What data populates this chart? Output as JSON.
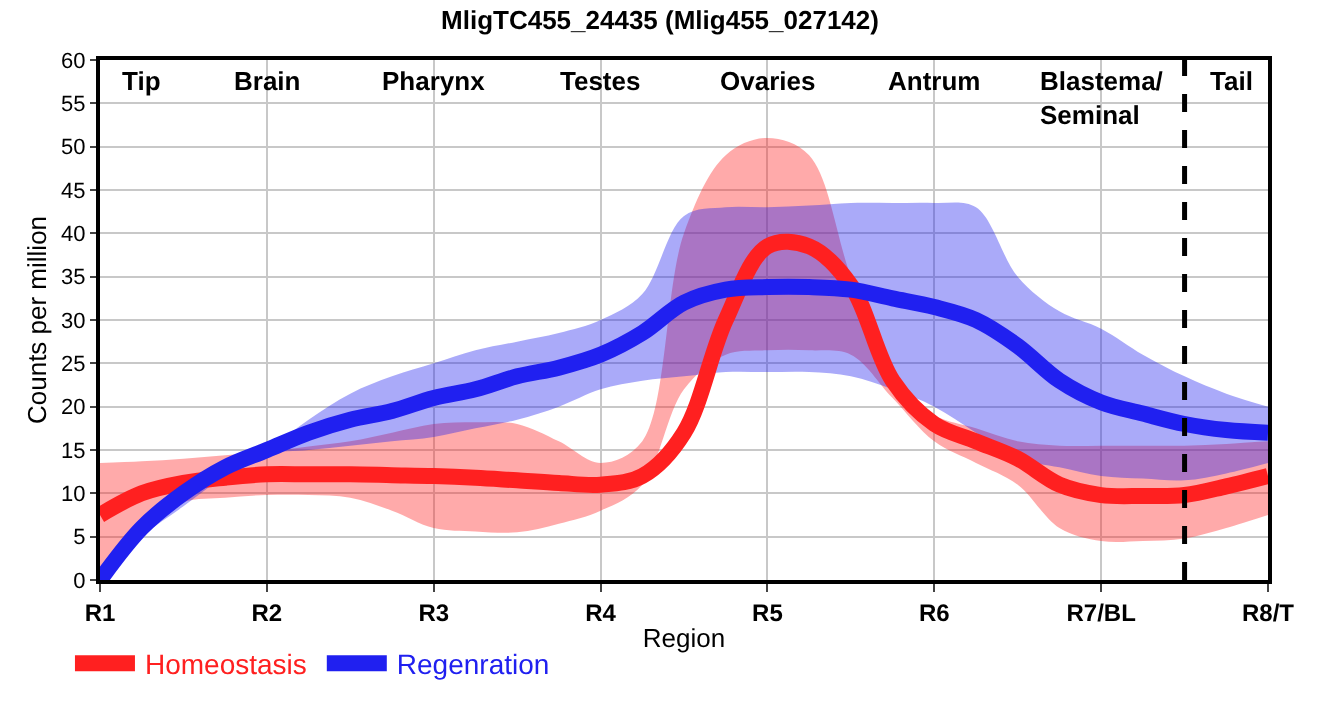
{
  "chart_data": {
    "type": "line",
    "title": "MligTC455_24435 (Mlig455_027142)",
    "xlabel": "Region",
    "ylabel": "Counts per million",
    "categories": [
      "R1",
      null,
      null,
      null,
      "R2",
      null,
      null,
      null,
      "R3",
      null,
      null,
      null,
      "R4",
      null,
      null,
      null,
      "R5",
      null,
      null,
      null,
      "R6",
      null,
      null,
      null,
      "R7/BL",
      null,
      null,
      null,
      "R8/T"
    ],
    "ylim": [
      0,
      60
    ],
    "yticks": [
      0,
      5,
      10,
      15,
      20,
      25,
      30,
      35,
      40,
      45,
      50,
      55,
      60
    ],
    "grid": true,
    "legend": "bottom left",
    "marker": "none",
    "line_style": "solid",
    "series": [
      {
        "name": "Homeostasis",
        "color": "#ff2020",
        "values": [
          7.5,
          10,
          11.2,
          11.8,
          12.2,
          12.2,
          12.2,
          12.1,
          12,
          11.8,
          11.5,
          11.2,
          11,
          12,
          17,
          30,
          38.5,
          38.5,
          34,
          23,
          18,
          16,
          14,
          11,
          9.8,
          9.7,
          9.8,
          10.8,
          12
        ],
        "lower": [
          1.5,
          6,
          9,
          9.5,
          9.8,
          9.8,
          9.5,
          8,
          6,
          5.6,
          5.5,
          6.5,
          8,
          11,
          22,
          26,
          26.5,
          26.5,
          26,
          21,
          16,
          13.5,
          11,
          6,
          4.5,
          4.5,
          4.8,
          6,
          7.5
        ],
        "upper": [
          13.5,
          13.7,
          14,
          14.4,
          14.8,
          15.4,
          16,
          17,
          18,
          18.2,
          18,
          16,
          13.5,
          16,
          40,
          49,
          51,
          49,
          35,
          23,
          19,
          17.5,
          16,
          15.5,
          15.5,
          15.5,
          15.5,
          15.7,
          16
        ]
      },
      {
        "name": "Regenration",
        "color": "#2020f0",
        "values": [
          0,
          6,
          10,
          13,
          15,
          17,
          18.5,
          19.5,
          21,
          22,
          23.5,
          24.5,
          26,
          28.5,
          32,
          33.5,
          33.8,
          33.8,
          33.5,
          32.5,
          31.5,
          30,
          27,
          23,
          20.5,
          19.2,
          18,
          17.3,
          17
        ],
        "lower": [
          0,
          5,
          8.5,
          12,
          14.5,
          15,
          15.5,
          16,
          16.5,
          17.5,
          18.5,
          20,
          22,
          23,
          23.5,
          24,
          24,
          24,
          23.5,
          22,
          20,
          17,
          14,
          13,
          12,
          11.7,
          11.5,
          12.3,
          13.5
        ],
        "upper": [
          0,
          5.5,
          9,
          12.5,
          15,
          18.5,
          21.5,
          23.5,
          25,
          26.5,
          27.5,
          28.5,
          30,
          33,
          42,
          43,
          43,
          43.2,
          43.5,
          43.5,
          43.5,
          43,
          35,
          31,
          29,
          26,
          23.5,
          21.5,
          20
        ]
      }
    ],
    "annotations": [
      "Tip",
      "Brain",
      "Pharynx",
      "Testes",
      "Ovaries",
      "Antrum",
      "Blastema/\nSeminal",
      "Tail"
    ]
  }
}
